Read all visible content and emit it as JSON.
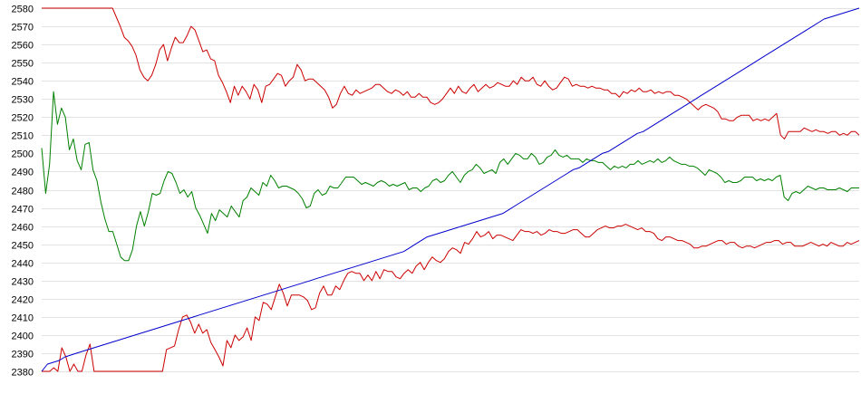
{
  "chart_data": {
    "type": "line",
    "title": "",
    "xlabel": "",
    "ylabel": "",
    "ylim": [
      2380,
      2580
    ],
    "yticks": [
      2380,
      2390,
      2400,
      2410,
      2420,
      2430,
      2440,
      2450,
      2460,
      2470,
      2480,
      2490,
      2500,
      2510,
      2520,
      2530,
      2540,
      2550,
      2560,
      2570,
      2580
    ],
    "grid": true,
    "legend": "none",
    "series": [
      {
        "color": "#cc0000",
        "values": [
          2580,
          2580,
          2580,
          2580,
          2580,
          2580,
          2580,
          2580,
          2580,
          2580,
          2580,
          2580,
          2580,
          2580,
          2580,
          2580,
          2580,
          2580,
          2580,
          2575,
          2570,
          2564,
          2562,
          2559,
          2554,
          2546,
          2542,
          2540,
          2543,
          2549,
          2557,
          2560,
          2551,
          2558,
          2564,
          2561,
          2561,
          2565,
          2570,
          2568,
          2562,
          2556,
          2557,
          2552,
          2551,
          2543,
          2539,
          2534,
          2528,
          2537,
          2532,
          2537,
          2534,
          2530,
          2538,
          2535,
          2528,
          2537,
          2538,
          2541,
          2544,
          2543,
          2537,
          2540,
          2542,
          2549,
          2546,
          2540,
          2541,
          2541,
          2539,
          2537,
          2535,
          2531,
          2525,
          2527,
          2533,
          2537,
          2533,
          2532,
          2535,
          2533,
          2534,
          2535,
          2536,
          2538,
          2538,
          2536,
          2534,
          2533,
          2535,
          2534,
          2532,
          2534,
          2531,
          2531,
          2533,
          2531,
          2531,
          2528,
          2527,
          2528,
          2530,
          2533,
          2536,
          2533,
          2537,
          2534,
          2533,
          2536,
          2538,
          2534,
          2536,
          2538,
          2536,
          2537,
          2539,
          2538,
          2537,
          2537,
          2540,
          2538,
          2542,
          2540,
          2540,
          2542,
          2538,
          2537,
          2540,
          2537,
          2535,
          2536,
          2539,
          2542,
          2541,
          2537,
          2538,
          2537,
          2537,
          2536,
          2537,
          2536,
          2536,
          2535,
          2535,
          2533,
          2533,
          2531,
          2534,
          2533,
          2535,
          2534,
          2536,
          2534,
          2534,
          2535,
          2533,
          2534,
          2533,
          2534,
          2534,
          2532,
          2532,
          2531,
          2530,
          2528,
          2526,
          2524,
          2526,
          2527,
          2526,
          2525,
          2523,
          2519,
          2519,
          2518,
          2518,
          2520,
          2521,
          2521,
          2521,
          2518,
          2519,
          2518,
          2519,
          2518,
          2520,
          2522,
          2510,
          2508,
          2512,
          2512,
          2512,
          2512,
          2514,
          2513,
          2512,
          2513,
          2512,
          2512,
          2511,
          2512,
          2512,
          2510,
          2511,
          2510,
          2512,
          2512,
          2510
        ]
      },
      {
        "color": "#008000",
        "values": [
          2503,
          2478,
          2494,
          2534,
          2516,
          2525,
          2520,
          2502,
          2508,
          2496,
          2491,
          2505,
          2506,
          2491,
          2485,
          2473,
          2464,
          2457,
          2457,
          2450,
          2443,
          2441,
          2441,
          2447,
          2460,
          2468,
          2460,
          2468,
          2478,
          2477,
          2478,
          2485,
          2490,
          2489,
          2484,
          2478,
          2480,
          2476,
          2479,
          2470,
          2466,
          2461,
          2456,
          2467,
          2463,
          2469,
          2467,
          2465,
          2471,
          2468,
          2465,
          2474,
          2476,
          2481,
          2479,
          2477,
          2484,
          2482,
          2488,
          2485,
          2481,
          2482,
          2482,
          2481,
          2480,
          2478,
          2475,
          2470,
          2471,
          2478,
          2480,
          2477,
          2478,
          2482,
          2481,
          2481,
          2484,
          2487,
          2487,
          2487,
          2485,
          2483,
          2484,
          2483,
          2482,
          2484,
          2485,
          2484,
          2482,
          2483,
          2482,
          2483,
          2484,
          2480,
          2481,
          2481,
          2479,
          2481,
          2482,
          2485,
          2486,
          2484,
          2485,
          2488,
          2490,
          2487,
          2484,
          2488,
          2490,
          2491,
          2494,
          2492,
          2489,
          2490,
          2491,
          2489,
          2495,
          2497,
          2494,
          2497,
          2500,
          2499,
          2497,
          2497,
          2500,
          2498,
          2494,
          2495,
          2498,
          2499,
          2502,
          2499,
          2498,
          2499,
          2497,
          2497,
          2497,
          2495,
          2497,
          2496,
          2496,
          2495,
          2495,
          2493,
          2491,
          2493,
          2492,
          2493,
          2492,
          2494,
          2494,
          2496,
          2494,
          2495,
          2496,
          2495,
          2497,
          2495,
          2496,
          2498,
          2496,
          2495,
          2494,
          2494,
          2493,
          2493,
          2492,
          2490,
          2488,
          2491,
          2490,
          2489,
          2487,
          2484,
          2485,
          2484,
          2484,
          2485,
          2487,
          2487,
          2487,
          2485,
          2486,
          2485,
          2486,
          2485,
          2487,
          2488,
          2476,
          2474,
          2478,
          2479,
          2478,
          2480,
          2482,
          2481,
          2480,
          2481,
          2481,
          2480,
          2480,
          2480,
          2481,
          2480,
          2479,
          2481,
          2481,
          2481
        ]
      },
      {
        "color": "#cc0000",
        "values": [
          2380,
          2380,
          2380,
          2382,
          2380,
          2393,
          2388,
          2380,
          2384,
          2380,
          2380,
          2389,
          2395,
          2380,
          2380,
          2380,
          2380,
          2380,
          2380,
          2380,
          2380,
          2380,
          2380,
          2380,
          2380,
          2380,
          2380,
          2380,
          2380,
          2380,
          2380,
          2392,
          2393,
          2394,
          2403,
          2410,
          2411,
          2407,
          2401,
          2406,
          2401,
          2403,
          2396,
          2392,
          2388,
          2383,
          2397,
          2393,
          2400,
          2397,
          2399,
          2404,
          2397,
          2410,
          2408,
          2418,
          2417,
          2414,
          2421,
          2428,
          2423,
          2416,
          2422,
          2422,
          2422,
          2421,
          2419,
          2414,
          2415,
          2423,
          2427,
          2422,
          2422,
          2427,
          2425,
          2430,
          2434,
          2435,
          2434,
          2434,
          2430,
          2433,
          2430,
          2435,
          2431,
          2436,
          2435,
          2435,
          2432,
          2431,
          2434,
          2436,
          2434,
          2438,
          2440,
          2436,
          2440,
          2443,
          2441,
          2440,
          2442,
          2446,
          2448,
          2447,
          2445,
          2451,
          2450,
          2453,
          2457,
          2454,
          2455,
          2457,
          2453,
          2455,
          2455,
          2454,
          2453,
          2452,
          2455,
          2458,
          2457,
          2457,
          2456,
          2457,
          2455,
          2456,
          2458,
          2457,
          2457,
          2456,
          2456,
          2457,
          2458,
          2458,
          2456,
          2454,
          2454,
          2456,
          2458,
          2459,
          2460,
          2459,
          2459,
          2460,
          2460,
          2461,
          2460,
          2459,
          2458,
          2459,
          2457,
          2457,
          2456,
          2453,
          2452,
          2454,
          2454,
          2453,
          2452,
          2452,
          2451,
          2450,
          2448,
          2448,
          2449,
          2449,
          2450,
          2451,
          2452,
          2452,
          2450,
          2451,
          2451,
          2449,
          2448,
          2449,
          2449,
          2448,
          2449,
          2450,
          2451,
          2451,
          2452,
          2452,
          2450,
          2451,
          2451,
          2449,
          2449,
          2449,
          2450,
          2451,
          2450,
          2449,
          2450,
          2449,
          2451,
          2450,
          2449,
          2449,
          2451,
          2450,
          2451,
          2452
        ]
      },
      {
        "color": "#0000cc",
        "values": [
          2380,
          2384,
          2385,
          2386,
          2388,
          2389,
          2390,
          2391,
          2392,
          2393,
          2394,
          2395,
          2396,
          2397,
          2398,
          2399,
          2400,
          2401,
          2402,
          2403,
          2404,
          2405,
          2406,
          2407,
          2408,
          2409,
          2410,
          2411,
          2412,
          2413,
          2414,
          2415,
          2416,
          2417,
          2418,
          2419,
          2420,
          2421,
          2422,
          2423,
          2424,
          2425,
          2426,
          2427,
          2428,
          2429,
          2430,
          2431,
          2432,
          2433,
          2434,
          2435,
          2436,
          2437,
          2438,
          2439,
          2440,
          2441,
          2442,
          2443,
          2444,
          2445,
          2446,
          2448,
          2450,
          2452,
          2454,
          2455,
          2456,
          2457,
          2458,
          2459,
          2460,
          2461,
          2462,
          2463,
          2464,
          2465,
          2466,
          2467,
          2469,
          2471,
          2473,
          2475,
          2477,
          2479,
          2481,
          2483,
          2485,
          2487,
          2489,
          2491,
          2492,
          2494,
          2496,
          2498,
          2500,
          2501,
          2503,
          2505,
          2507,
          2509,
          2511,
          2512,
          2514,
          2516,
          2518,
          2520,
          2522,
          2524,
          2526,
          2528,
          2530,
          2532,
          2534,
          2536,
          2538,
          2540,
          2542,
          2544,
          2546,
          2548,
          2550,
          2552,
          2554,
          2556,
          2558,
          2560,
          2562,
          2564,
          2566,
          2568,
          2570,
          2572,
          2574,
          2575,
          2576,
          2577,
          2578,
          2579,
          2580
        ]
      }
    ]
  }
}
